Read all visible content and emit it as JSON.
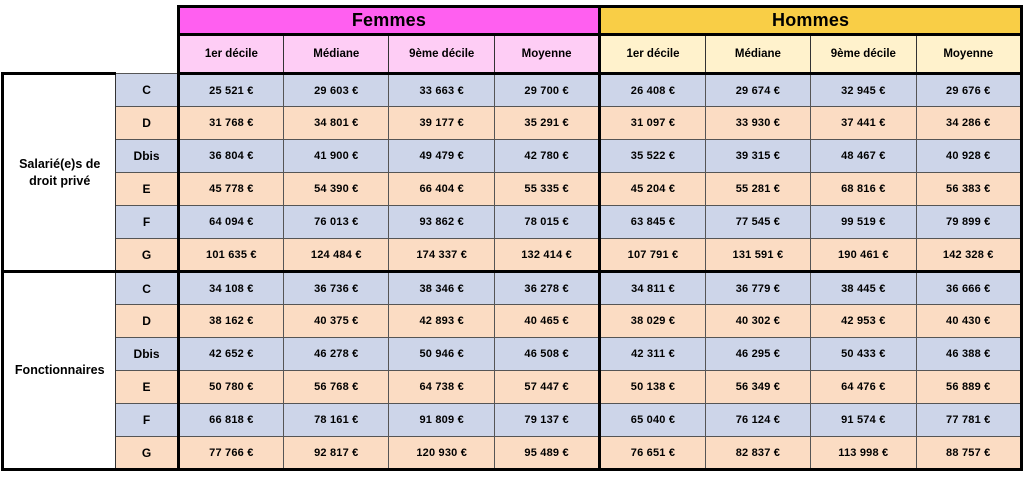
{
  "header": {
    "femmes_label": "Femmes",
    "hommes_label": "Hommes",
    "femmes_columns": [
      "1er décile",
      "Médiane",
      "9ème décile",
      "Moyenne"
    ],
    "hommes_columns": [
      "1er décile",
      "Médiane",
      "9ème décile",
      "Moyenne"
    ]
  },
  "groups": [
    {
      "label": "Salarié(e)s de droit privé",
      "rows": [
        {
          "category": "C",
          "femmes": [
            "25 521 €",
            "29 603 €",
            "33 663 €",
            "29 700 €"
          ],
          "hommes": [
            "26 408 €",
            "29 674 €",
            "32 945 €",
            "29 676 €"
          ]
        },
        {
          "category": "D",
          "femmes": [
            "31 768 €",
            "34 801 €",
            "39 177 €",
            "35 291 €"
          ],
          "hommes": [
            "31 097 €",
            "33 930 €",
            "37 441 €",
            "34 286 €"
          ]
        },
        {
          "category": "Dbis",
          "femmes": [
            "36 804 €",
            "41 900 €",
            "49 479 €",
            "42 780 €"
          ],
          "hommes": [
            "35 522 €",
            "39 315 €",
            "48 467 €",
            "40 928 €"
          ]
        },
        {
          "category": "E",
          "femmes": [
            "45 778 €",
            "54 390 €",
            "66 404 €",
            "55 335 €"
          ],
          "hommes": [
            "45 204 €",
            "55 281 €",
            "68 816 €",
            "56 383 €"
          ]
        },
        {
          "category": "F",
          "femmes": [
            "64 094 €",
            "76 013 €",
            "93 862 €",
            "78 015 €"
          ],
          "hommes": [
            "63 845 €",
            "77 545 €",
            "99 519 €",
            "79 899 €"
          ]
        },
        {
          "category": "G",
          "femmes": [
            "101 635 €",
            "124 484 €",
            "174 337 €",
            "132 414 €"
          ],
          "hommes": [
            "107 791 €",
            "131 591 €",
            "190 461 €",
            "142 328 €"
          ]
        }
      ]
    },
    {
      "label": "Fonctionnaires",
      "rows": [
        {
          "category": "C",
          "femmes": [
            "34 108 €",
            "36 736 €",
            "38 346 €",
            "36 278 €"
          ],
          "hommes": [
            "34 811 €",
            "36 779 €",
            "38 445 €",
            "36 666 €"
          ]
        },
        {
          "category": "D",
          "femmes": [
            "38 162 €",
            "40 375 €",
            "42 893 €",
            "40 465 €"
          ],
          "hommes": [
            "38 029 €",
            "40 302 €",
            "42 953 €",
            "40 430 €"
          ]
        },
        {
          "category": "Dbis",
          "femmes": [
            "42 652 €",
            "46 278 €",
            "50 946 €",
            "46 508 €"
          ],
          "hommes": [
            "42 311 €",
            "46 295 €",
            "50 433 €",
            "46 388 €"
          ]
        },
        {
          "category": "E",
          "femmes": [
            "50 780 €",
            "56 768 €",
            "64 738 €",
            "57 447 €"
          ],
          "hommes": [
            "50 138 €",
            "56 349 €",
            "64 476 €",
            "56 889 €"
          ]
        },
        {
          "category": "F",
          "femmes": [
            "66 818 €",
            "78 161 €",
            "91 809 €",
            "79 137 €"
          ],
          "hommes": [
            "65 040 €",
            "76 124 €",
            "91 574 €",
            "77 781 €"
          ]
        },
        {
          "category": "G",
          "femmes": [
            "77 766 €",
            "92 817 €",
            "120 930 €",
            "95 489 €"
          ],
          "hommes": [
            "76 651 €",
            "82 837 €",
            "113 998 €",
            "88 757 €"
          ]
        }
      ]
    }
  ],
  "colors": {
    "femmes_banner": "#FF5FF0",
    "hommes_banner": "#F9CE46",
    "femmes_subheader": "#FECDF5",
    "hommes_subheader": "#FFF2CC",
    "row_blue": "#CDD5E9",
    "row_peach": "#FBDCC3",
    "thin_border": "#555555",
    "thick_border": "#000000"
  }
}
